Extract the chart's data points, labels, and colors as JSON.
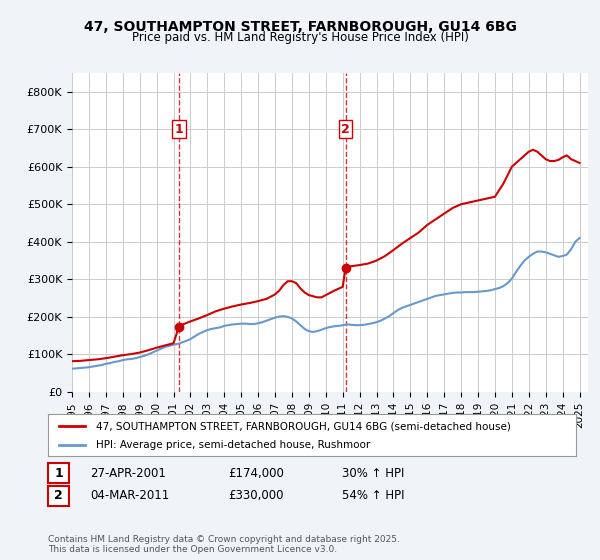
{
  "title_line1": "47, SOUTHAMPTON STREET, FARNBOROUGH, GU14 6BG",
  "title_line2": "Price paid vs. HM Land Registry's House Price Index (HPI)",
  "ylabel": "",
  "legend_label1": "47, SOUTHAMPTON STREET, FARNBOROUGH, GU14 6BG (semi-detached house)",
  "legend_label2": "HPI: Average price, semi-detached house, Rushmoor",
  "annotation1_label": "1",
  "annotation1_date": "27-APR-2001",
  "annotation1_price": "£174,000",
  "annotation1_hpi": "30% ↑ HPI",
  "annotation2_label": "2",
  "annotation2_date": "04-MAR-2011",
  "annotation2_price": "£330,000",
  "annotation2_hpi": "54% ↑ HPI",
  "footer": "Contains HM Land Registry data © Crown copyright and database right 2025.\nThis data is licensed under the Open Government Licence v3.0.",
  "red_color": "#cc0000",
  "blue_color": "#6699cc",
  "vline_color": "#cc0000",
  "background_color": "#f0f4f8",
  "plot_bg_color": "#ffffff",
  "grid_color": "#cccccc",
  "ylim": [
    0,
    850000
  ],
  "yticks": [
    0,
    100000,
    200000,
    300000,
    400000,
    500000,
    600000,
    700000,
    800000
  ],
  "ytick_labels": [
    "£0",
    "£100K",
    "£200K",
    "£300K",
    "£400K",
    "£500K",
    "£600K",
    "£700K",
    "£800K"
  ],
  "sale1_x": 2001.32,
  "sale1_y": 174000,
  "sale2_x": 2011.17,
  "sale2_y": 330000,
  "hpi_x": [
    1995,
    1995.25,
    1995.5,
    1995.75,
    1996,
    1996.25,
    1996.5,
    1996.75,
    1997,
    1997.25,
    1997.5,
    1997.75,
    1998,
    1998.25,
    1998.5,
    1998.75,
    1999,
    1999.25,
    1999.5,
    1999.75,
    2000,
    2000.25,
    2000.5,
    2000.75,
    2001,
    2001.25,
    2001.5,
    2001.75,
    2002,
    2002.25,
    2002.5,
    2002.75,
    2003,
    2003.25,
    2003.5,
    2003.75,
    2004,
    2004.25,
    2004.5,
    2004.75,
    2005,
    2005.25,
    2005.5,
    2005.75,
    2006,
    2006.25,
    2006.5,
    2006.75,
    2007,
    2007.25,
    2007.5,
    2007.75,
    2008,
    2008.25,
    2008.5,
    2008.75,
    2009,
    2009.25,
    2009.5,
    2009.75,
    2010,
    2010.25,
    2010.5,
    2010.75,
    2011,
    2011.25,
    2011.5,
    2011.75,
    2012,
    2012.25,
    2012.5,
    2012.75,
    2013,
    2013.25,
    2013.5,
    2013.75,
    2014,
    2014.25,
    2014.5,
    2014.75,
    2015,
    2015.25,
    2015.5,
    2015.75,
    2016,
    2016.25,
    2016.5,
    2016.75,
    2017,
    2017.25,
    2017.5,
    2017.75,
    2018,
    2018.25,
    2018.5,
    2018.75,
    2019,
    2019.25,
    2019.5,
    2019.75,
    2020,
    2020.25,
    2020.5,
    2020.75,
    2021,
    2021.25,
    2021.5,
    2021.75,
    2022,
    2022.25,
    2022.5,
    2022.75,
    2023,
    2023.25,
    2023.5,
    2023.75,
    2024,
    2024.25,
    2024.5,
    2024.75,
    2025
  ],
  "hpi_y": [
    62000,
    63000,
    64000,
    65000,
    66000,
    68000,
    70000,
    72000,
    75000,
    77000,
    80000,
    82000,
    85000,
    87000,
    88000,
    90000,
    93000,
    96000,
    100000,
    105000,
    110000,
    115000,
    120000,
    123000,
    126000,
    128000,
    132000,
    136000,
    141000,
    148000,
    155000,
    160000,
    165000,
    168000,
    170000,
    172000,
    176000,
    178000,
    180000,
    181000,
    182000,
    182000,
    181000,
    181000,
    183000,
    186000,
    190000,
    194000,
    198000,
    201000,
    202000,
    200000,
    196000,
    188000,
    178000,
    168000,
    162000,
    160000,
    162000,
    166000,
    170000,
    173000,
    175000,
    176000,
    178000,
    180000,
    179000,
    178000,
    178000,
    179000,
    181000,
    183000,
    186000,
    190000,
    196000,
    202000,
    210000,
    218000,
    224000,
    228000,
    232000,
    236000,
    240000,
    244000,
    248000,
    252000,
    256000,
    258000,
    260000,
    262000,
    264000,
    265000,
    265000,
    266000,
    266000,
    266000,
    267000,
    268000,
    269000,
    271000,
    274000,
    277000,
    282000,
    290000,
    302000,
    320000,
    336000,
    350000,
    360000,
    368000,
    374000,
    374000,
    372000,
    368000,
    364000,
    360000,
    362000,
    366000,
    380000,
    400000,
    410000
  ],
  "price_x": [
    1995,
    1995.5,
    1996,
    1996.5,
    1997,
    1997.5,
    1998,
    1998.5,
    1999,
    1999.5,
    2000,
    2000.5,
    2001,
    2001.32,
    2001.5,
    2002,
    2002.5,
    2003,
    2003.5,
    2004,
    2004.5,
    2005,
    2005.5,
    2006,
    2006.5,
    2007,
    2007.25,
    2007.5,
    2007.75,
    2008,
    2008.25,
    2008.5,
    2008.75,
    2009,
    2009.25,
    2009.5,
    2009.75,
    2010,
    2010.25,
    2010.5,
    2010.75,
    2011,
    2011.17,
    2011.5,
    2012,
    2012.5,
    2013,
    2013.5,
    2014,
    2014.5,
    2015,
    2015.5,
    2016,
    2016.5,
    2017,
    2017.5,
    2018,
    2018.5,
    2019,
    2019.5,
    2020,
    2020.5,
    2021,
    2021.5,
    2022,
    2022.25,
    2022.5,
    2022.75,
    2023,
    2023.25,
    2023.5,
    2023.75,
    2024,
    2024.25,
    2024.5,
    2024.75,
    2025
  ],
  "price_y": [
    82000,
    83000,
    85000,
    87000,
    90000,
    94000,
    98000,
    101000,
    105000,
    111000,
    118000,
    124000,
    130000,
    174000,
    179000,
    188000,
    196000,
    205000,
    215000,
    222000,
    228000,
    233000,
    237000,
    242000,
    248000,
    260000,
    270000,
    285000,
    295000,
    295000,
    290000,
    276000,
    265000,
    258000,
    255000,
    252000,
    252000,
    258000,
    264000,
    270000,
    275000,
    280000,
    330000,
    335000,
    338000,
    342000,
    350000,
    362000,
    378000,
    395000,
    410000,
    425000,
    445000,
    460000,
    475000,
    490000,
    500000,
    505000,
    510000,
    515000,
    520000,
    555000,
    600000,
    620000,
    640000,
    645000,
    640000,
    630000,
    620000,
    615000,
    615000,
    618000,
    625000,
    630000,
    620000,
    615000,
    610000
  ],
  "xtick_years": [
    1995,
    1996,
    1997,
    1998,
    1999,
    2000,
    2001,
    2002,
    2003,
    2004,
    2005,
    2006,
    2007,
    2008,
    2009,
    2010,
    2011,
    2012,
    2013,
    2014,
    2015,
    2016,
    2017,
    2018,
    2019,
    2020,
    2021,
    2022,
    2023,
    2024,
    2025
  ]
}
